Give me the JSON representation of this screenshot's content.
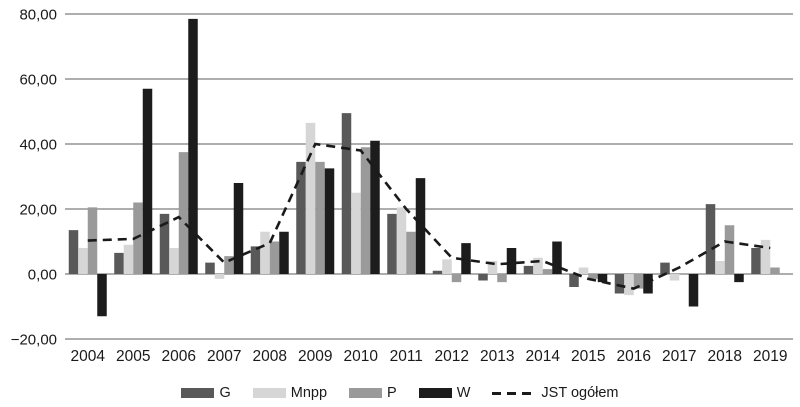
{
  "chart_data": {
    "type": "bar",
    "title": "",
    "xlabel": "",
    "ylabel": "",
    "categories": [
      "2004",
      "2005",
      "2006",
      "2007",
      "2008",
      "2009",
      "2010",
      "2011",
      "2012",
      "2013",
      "2014",
      "2015",
      "2016",
      "2017",
      "2018",
      "2019"
    ],
    "series": [
      {
        "name": "G",
        "type": "bar",
        "color": "#595959",
        "values": [
          13.5,
          6.5,
          18.5,
          3.5,
          8.5,
          34.5,
          49.5,
          18.5,
          1.0,
          -2.0,
          2.5,
          -4.0,
          -6.0,
          3.5,
          21.5,
          8.0
        ]
      },
      {
        "name": "Mnpp",
        "type": "bar",
        "color": "#d6d6d6",
        "values": [
          8.0,
          9.0,
          8.0,
          -1.5,
          13.0,
          46.5,
          25.0,
          20.5,
          4.5,
          4.0,
          5.0,
          2.0,
          -6.5,
          -2.0,
          4.0,
          10.5
        ]
      },
      {
        "name": "P",
        "type": "bar",
        "color": "#9a9a9a",
        "values": [
          20.5,
          22.0,
          37.5,
          5.5,
          10.0,
          34.5,
          39.0,
          13.0,
          -2.5,
          -2.5,
          1.5,
          -1.5,
          -4.5,
          0.0,
          15.0,
          2.0
        ]
      },
      {
        "name": "W",
        "type": "bar",
        "color": "#1c1c1c",
        "values": [
          -13.0,
          57.0,
          78.5,
          28.0,
          13.0,
          32.5,
          41.0,
          29.5,
          9.5,
          8.0,
          10.0,
          -2.5,
          -6.0,
          -10.0,
          -2.5,
          0.0
        ]
      },
      {
        "name": "JST ogółem",
        "type": "line",
        "color": "#1a1a1a",
        "dashed": true,
        "values": [
          10.3,
          10.8,
          17.5,
          3.5,
          9.5,
          40.0,
          38.0,
          20.0,
          5.0,
          3.0,
          4.0,
          -1.5,
          -4.5,
          2.0,
          10.0,
          8.0
        ]
      }
    ],
    "ylim": [
      -20,
      80
    ],
    "ytick_step": 20,
    "ytick_labels": [
      "80,00",
      "60,00",
      "40,00",
      "20,00",
      "0,00",
      "−20,00"
    ],
    "grid": true,
    "gridline_color": "#7d7d7d",
    "axis_text_color": "#1a1a1a",
    "legend_position": "bottom"
  }
}
